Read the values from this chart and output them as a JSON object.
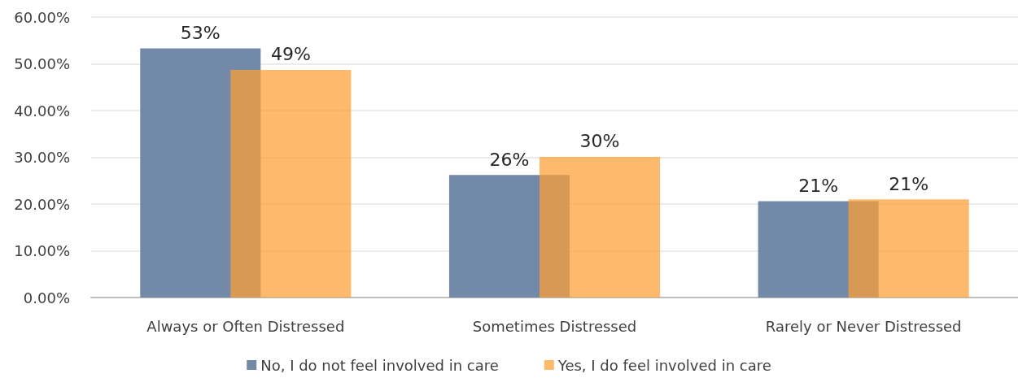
{
  "chart_data": {
    "type": "bar",
    "categories": [
      "Always or Often Distressed",
      "Sometimes Distressed",
      "Rarely or Never Distressed"
    ],
    "series": [
      {
        "name": "No, I do not feel involved in care",
        "color": "#7389a8",
        "values": [
          53.3,
          26.2,
          20.6
        ],
        "value_labels": [
          "53%",
          "26%",
          "21%"
        ]
      },
      {
        "name": "Yes, I do feel involved in care",
        "color": "#fdb96c",
        "values": [
          48.7,
          30.1,
          21.0
        ],
        "value_labels": [
          "49%",
          "30%",
          "21%"
        ]
      }
    ],
    "ylim": [
      0,
      60
    ],
    "yticks": [
      {
        "value": 0,
        "label": "0.00%"
      },
      {
        "value": 10,
        "label": "10.00%"
      },
      {
        "value": 20,
        "label": "20.00%"
      },
      {
        "value": 30,
        "label": "30.00%"
      },
      {
        "value": 40,
        "label": "40.00%"
      },
      {
        "value": 50,
        "label": "50.00%"
      },
      {
        "value": 60,
        "label": "60.00%"
      }
    ],
    "grid": "y",
    "legend": "bottom"
  }
}
